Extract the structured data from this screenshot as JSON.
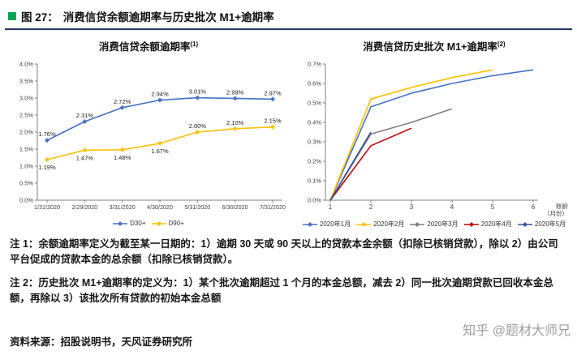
{
  "header": {
    "figure_label": "图 27：",
    "title": "消费信贷余额逾期率与历史批次 M1+逾期率",
    "bullet_color": "#00A651",
    "rule_color": "#1F3864"
  },
  "chart_data": [
    {
      "type": "line",
      "title": "消费信贷余额逾期率",
      "title_sup": "(1)",
      "categories": [
        "1/31/2020",
        "2/29/2020",
        "3/31/2020",
        "4/30/2020",
        "5/31/2020",
        "6/30/2020",
        "7/31/2020"
      ],
      "ylim": [
        0.0,
        4.0
      ],
      "ytick_step": 0.5,
      "grid": false,
      "legend_position": "bottom",
      "series": [
        {
          "name": "D30+",
          "color": "#4472C4",
          "marker": "diamond",
          "values": [
            1.76,
            2.31,
            2.72,
            2.94,
            3.01,
            2.99,
            2.97
          ],
          "labels": [
            "1.76%",
            "2.31%",
            "2.72%",
            "2.94%",
            "3.01%",
            "2.99%",
            "2.97%"
          ],
          "label_sides": [
            "above",
            "above",
            "above",
            "above",
            "above",
            "above",
            "above"
          ]
        },
        {
          "name": "D90+",
          "color": "#FFC000",
          "marker": "diamond",
          "values": [
            1.19,
            1.47,
            1.48,
            1.67,
            2.0,
            2.1,
            2.15
          ],
          "labels": [
            "1.19%",
            "1.47%",
            "1.48%",
            "1.67%",
            "2.00%",
            "2.10%",
            "2.15%"
          ],
          "label_sides": [
            "below",
            "below",
            "below",
            "below",
            "above",
            "above",
            "above"
          ]
        }
      ]
    },
    {
      "type": "line",
      "title": "消费信贷历史批次 M1+逾期率",
      "title_sup": "(2)",
      "x": [
        1,
        2,
        3,
        4,
        5,
        6
      ],
      "xlabel_lines": [
        "账龄",
        "（月份）"
      ],
      "ylim": [
        0.0,
        0.7
      ],
      "ytick_step": 0.1,
      "grid": false,
      "legend_position": "bottom",
      "series": [
        {
          "name": "2020年1月",
          "color": "#4472C4",
          "values": [
            0.0,
            0.48,
            0.55,
            0.6,
            0.64,
            0.67
          ]
        },
        {
          "name": "2020年2月",
          "color": "#FFC000",
          "values": [
            0.0,
            0.52,
            0.58,
            0.63,
            0.67,
            null
          ]
        },
        {
          "name": "2020年3月",
          "color": "#7F7F7F",
          "values": [
            0.0,
            0.34,
            0.4,
            0.47,
            null,
            null
          ]
        },
        {
          "name": "2020年4月",
          "color": "#C00000",
          "values": [
            0.0,
            0.28,
            0.37,
            null,
            null,
            null
          ]
        },
        {
          "name": "2020年5月",
          "color": "#2F5597",
          "values": [
            0.0,
            0.35,
            null,
            null,
            null,
            null
          ]
        }
      ]
    }
  ],
  "notes": [
    "注 1：余额逾期率定义为截至某一日期的：1）逾期 30 天或 90 天以上的贷款本金余额（扣除已核销贷款），除以 2）由公司平台促成的贷款本金的总余额（扣除已核销贷款）。",
    "注 2：历史批次 M1+逾期率的定义为：1）某个批次逾期超过 1 个月的本金总额，减去 2）同一批次逾期贷款已回收本金总额，再除以 3）该批次所有贷款的初始本金总额"
  ],
  "source": "资料来源：招股说明书，天风证券研究所",
  "watermark": "知乎 @题材大师兄"
}
